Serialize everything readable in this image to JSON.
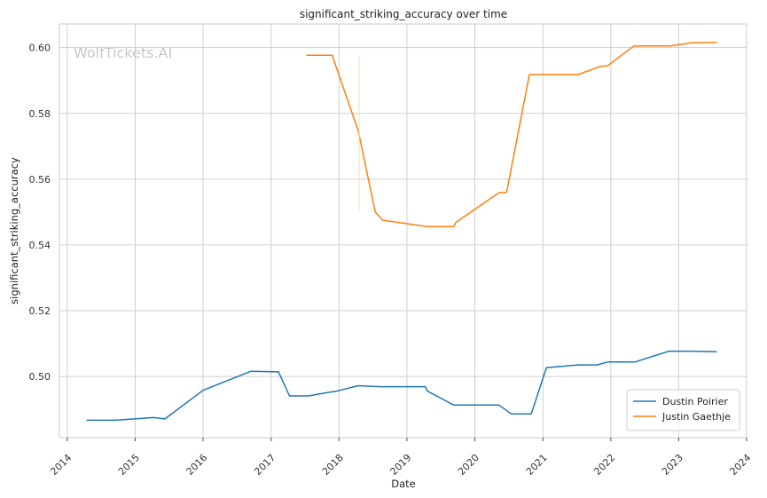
{
  "chart_data": {
    "type": "line",
    "title": "significant_striking_accuracy over time",
    "xlabel": "Date",
    "ylabel": "significant_striking_accuracy",
    "watermark": "WolfTickets.AI",
    "xlim": [
      "2013-11-20",
      "2024-01-01"
    ],
    "ylim": [
      0.4814,
      0.6072
    ],
    "x_ticks": [
      "2014",
      "2015",
      "2016",
      "2017",
      "2018",
      "2019",
      "2020",
      "2021",
      "2022",
      "2023",
      "2024"
    ],
    "y_ticks": [
      "0.50",
      "0.52",
      "0.54",
      "0.56",
      "0.58",
      "0.60"
    ],
    "y_tick_values": [
      0.5,
      0.52,
      0.54,
      0.56,
      0.58,
      0.6
    ],
    "grid": true,
    "legend_position": "lower-right",
    "series": [
      {
        "name": "Dustin Poirier",
        "color": "#1f77b4",
        "points": [
          [
            "2014-04-15",
            0.4867
          ],
          [
            "2014-09-15",
            0.4867
          ],
          [
            "2015-04-10",
            0.4875
          ],
          [
            "2015-06-10",
            0.4871
          ],
          [
            "2016-01-01",
            0.4958
          ],
          [
            "2016-09-15",
            0.5016
          ],
          [
            "2017-02-10",
            0.5014
          ],
          [
            "2017-04-10",
            0.4941
          ],
          [
            "2017-07-20",
            0.4941
          ],
          [
            "2017-11-10",
            0.4952
          ],
          [
            "2017-12-15",
            0.4955
          ],
          [
            "2018-04-15",
            0.4972
          ],
          [
            "2018-08-10",
            0.4969
          ],
          [
            "2019-04-10",
            0.4969
          ],
          [
            "2019-04-20",
            0.4956
          ],
          [
            "2019-09-10",
            0.4913
          ],
          [
            "2020-05-10",
            0.4913
          ],
          [
            "2020-07-15",
            0.4886
          ],
          [
            "2020-10-30",
            0.4886
          ],
          [
            "2021-01-20",
            0.5027
          ],
          [
            "2021-07-10",
            0.5035
          ],
          [
            "2021-10-20",
            0.5035
          ],
          [
            "2021-12-15",
            0.5044
          ],
          [
            "2022-05-10",
            0.5044
          ],
          [
            "2022-11-10",
            0.5077
          ],
          [
            "2023-03-15",
            0.5077
          ],
          [
            "2023-07-25",
            0.5075
          ]
        ]
      },
      {
        "name": "Justin Gaethje",
        "color": "#ff7f0e",
        "points": [
          [
            "2017-07-10",
            0.5977
          ],
          [
            "2017-11-25",
            0.5977
          ],
          [
            "2018-04-15",
            0.5746
          ],
          [
            "2018-07-15",
            0.55
          ],
          [
            "2018-08-25",
            0.5475
          ],
          [
            "2019-04-20",
            0.5456
          ],
          [
            "2019-09-10",
            0.5456
          ],
          [
            "2019-09-20",
            0.5468
          ],
          [
            "2020-05-10",
            0.5559
          ],
          [
            "2020-06-20",
            0.556
          ],
          [
            "2020-10-20",
            0.5918
          ],
          [
            "2021-07-10",
            0.5918
          ],
          [
            "2021-11-05",
            0.5943
          ],
          [
            "2021-12-15",
            0.5945
          ],
          [
            "2022-05-05",
            0.6005
          ],
          [
            "2022-11-20",
            0.6005
          ],
          [
            "2023-03-10",
            0.6015
          ],
          [
            "2023-07-25",
            0.6016
          ]
        ]
      }
    ]
  }
}
